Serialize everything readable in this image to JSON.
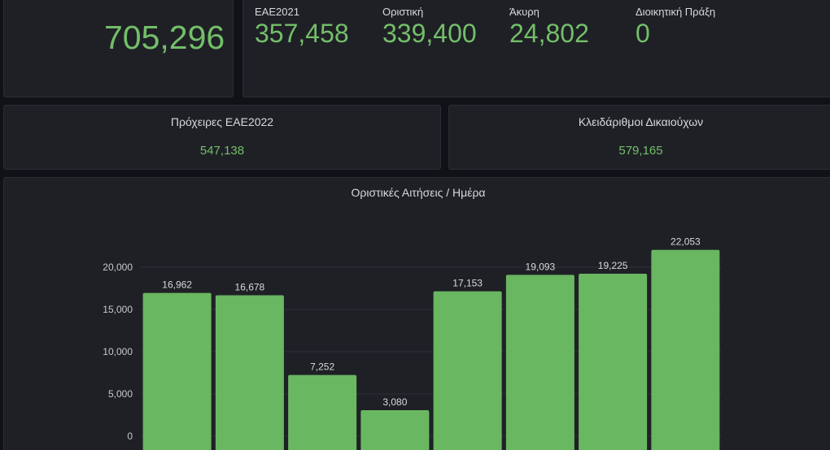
{
  "total": {
    "value": "705,296"
  },
  "stats": [
    {
      "label": "ΕΑΕ2021",
      "value": "357,458"
    },
    {
      "label": "Οριστική",
      "value": "339,400"
    },
    {
      "label": "Άκυρη",
      "value": "24,802"
    },
    {
      "label": "Διοικητική Πράξη",
      "value": "0"
    }
  ],
  "drafts": {
    "title": "Πρόχειρες ΕΑΕ2022",
    "value": "547,138"
  },
  "keys": {
    "title": "Κλειδάριθμοι Δικαιούχων",
    "value": "579,165"
  },
  "colors": {
    "accent": "#73bf69",
    "bar": "#6ab762",
    "panel": "#1f2026",
    "background": "#111217",
    "text": "#d8d9da"
  },
  "chart_data": {
    "type": "bar",
    "title": "Οριστικές Αιτήσεις / Ημέρα",
    "values": [
      16962,
      16678,
      7252,
      3080,
      17153,
      19093,
      19225,
      22053
    ],
    "value_labels": [
      "16,962",
      "16,678",
      "7,252",
      "3,080",
      "17,153",
      "19,093",
      "19,225",
      "22,053"
    ],
    "y_ticks": [
      0,
      5000,
      10000,
      15000,
      20000
    ],
    "y_tick_labels": [
      "0",
      "5,000",
      "10,000",
      "15,000",
      "20,000"
    ],
    "grid": true,
    "color": "#6ab762"
  }
}
